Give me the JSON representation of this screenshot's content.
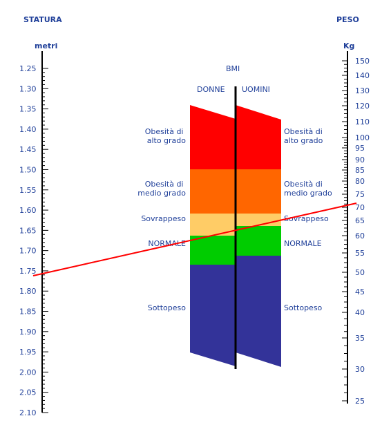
{
  "left_axis": {
    "title": "STATURA",
    "unit": "metri",
    "ticks": [
      "1.25",
      "1.30",
      "1.35",
      "1.40",
      "1.45",
      "1.50",
      "1.55",
      "1.60",
      "1.65",
      "1.70",
      "1.75",
      "1.80",
      "1.85",
      "1.90",
      "1.95",
      "2.00",
      "2.05",
      "2.10"
    ]
  },
  "right_axis": {
    "title": "PESO",
    "unit": "Kg",
    "ticks": [
      "150",
      "140",
      "130",
      "120",
      "110",
      "100",
      "95",
      "90",
      "85",
      "80",
      "75",
      "70",
      "65",
      "60",
      "55",
      "50",
      "45",
      "40",
      "35",
      "30",
      "25"
    ]
  },
  "bmi": {
    "title": "BMI",
    "women_label": "DONNE",
    "men_label": "UOMINI",
    "categories": [
      {
        "key": "obese-high",
        "left_label": "Obesità di\nalto grado",
        "right_label": "Obesità di\nalto grado",
        "color": "#ff0000"
      },
      {
        "key": "obese-mid",
        "left_label": "Obesità di\nmedio grado",
        "right_label": "Obesità di\nmedio grado",
        "color": "#ff6600"
      },
      {
        "key": "overweight",
        "left_label": "Sovrappeso",
        "right_label": "Sovrappeso",
        "color": "#ffcc66"
      },
      {
        "key": "normal",
        "left_label": "NORMALE",
        "right_label": "NORMALE",
        "color": "#00cc00"
      },
      {
        "key": "underweight",
        "left_label": "Sottopeso",
        "right_label": "Sottopeso",
        "color": "#333399"
      }
    ]
  },
  "example_line": {
    "height": "1.70",
    "weight": "70",
    "color": "#ff0000"
  }
}
